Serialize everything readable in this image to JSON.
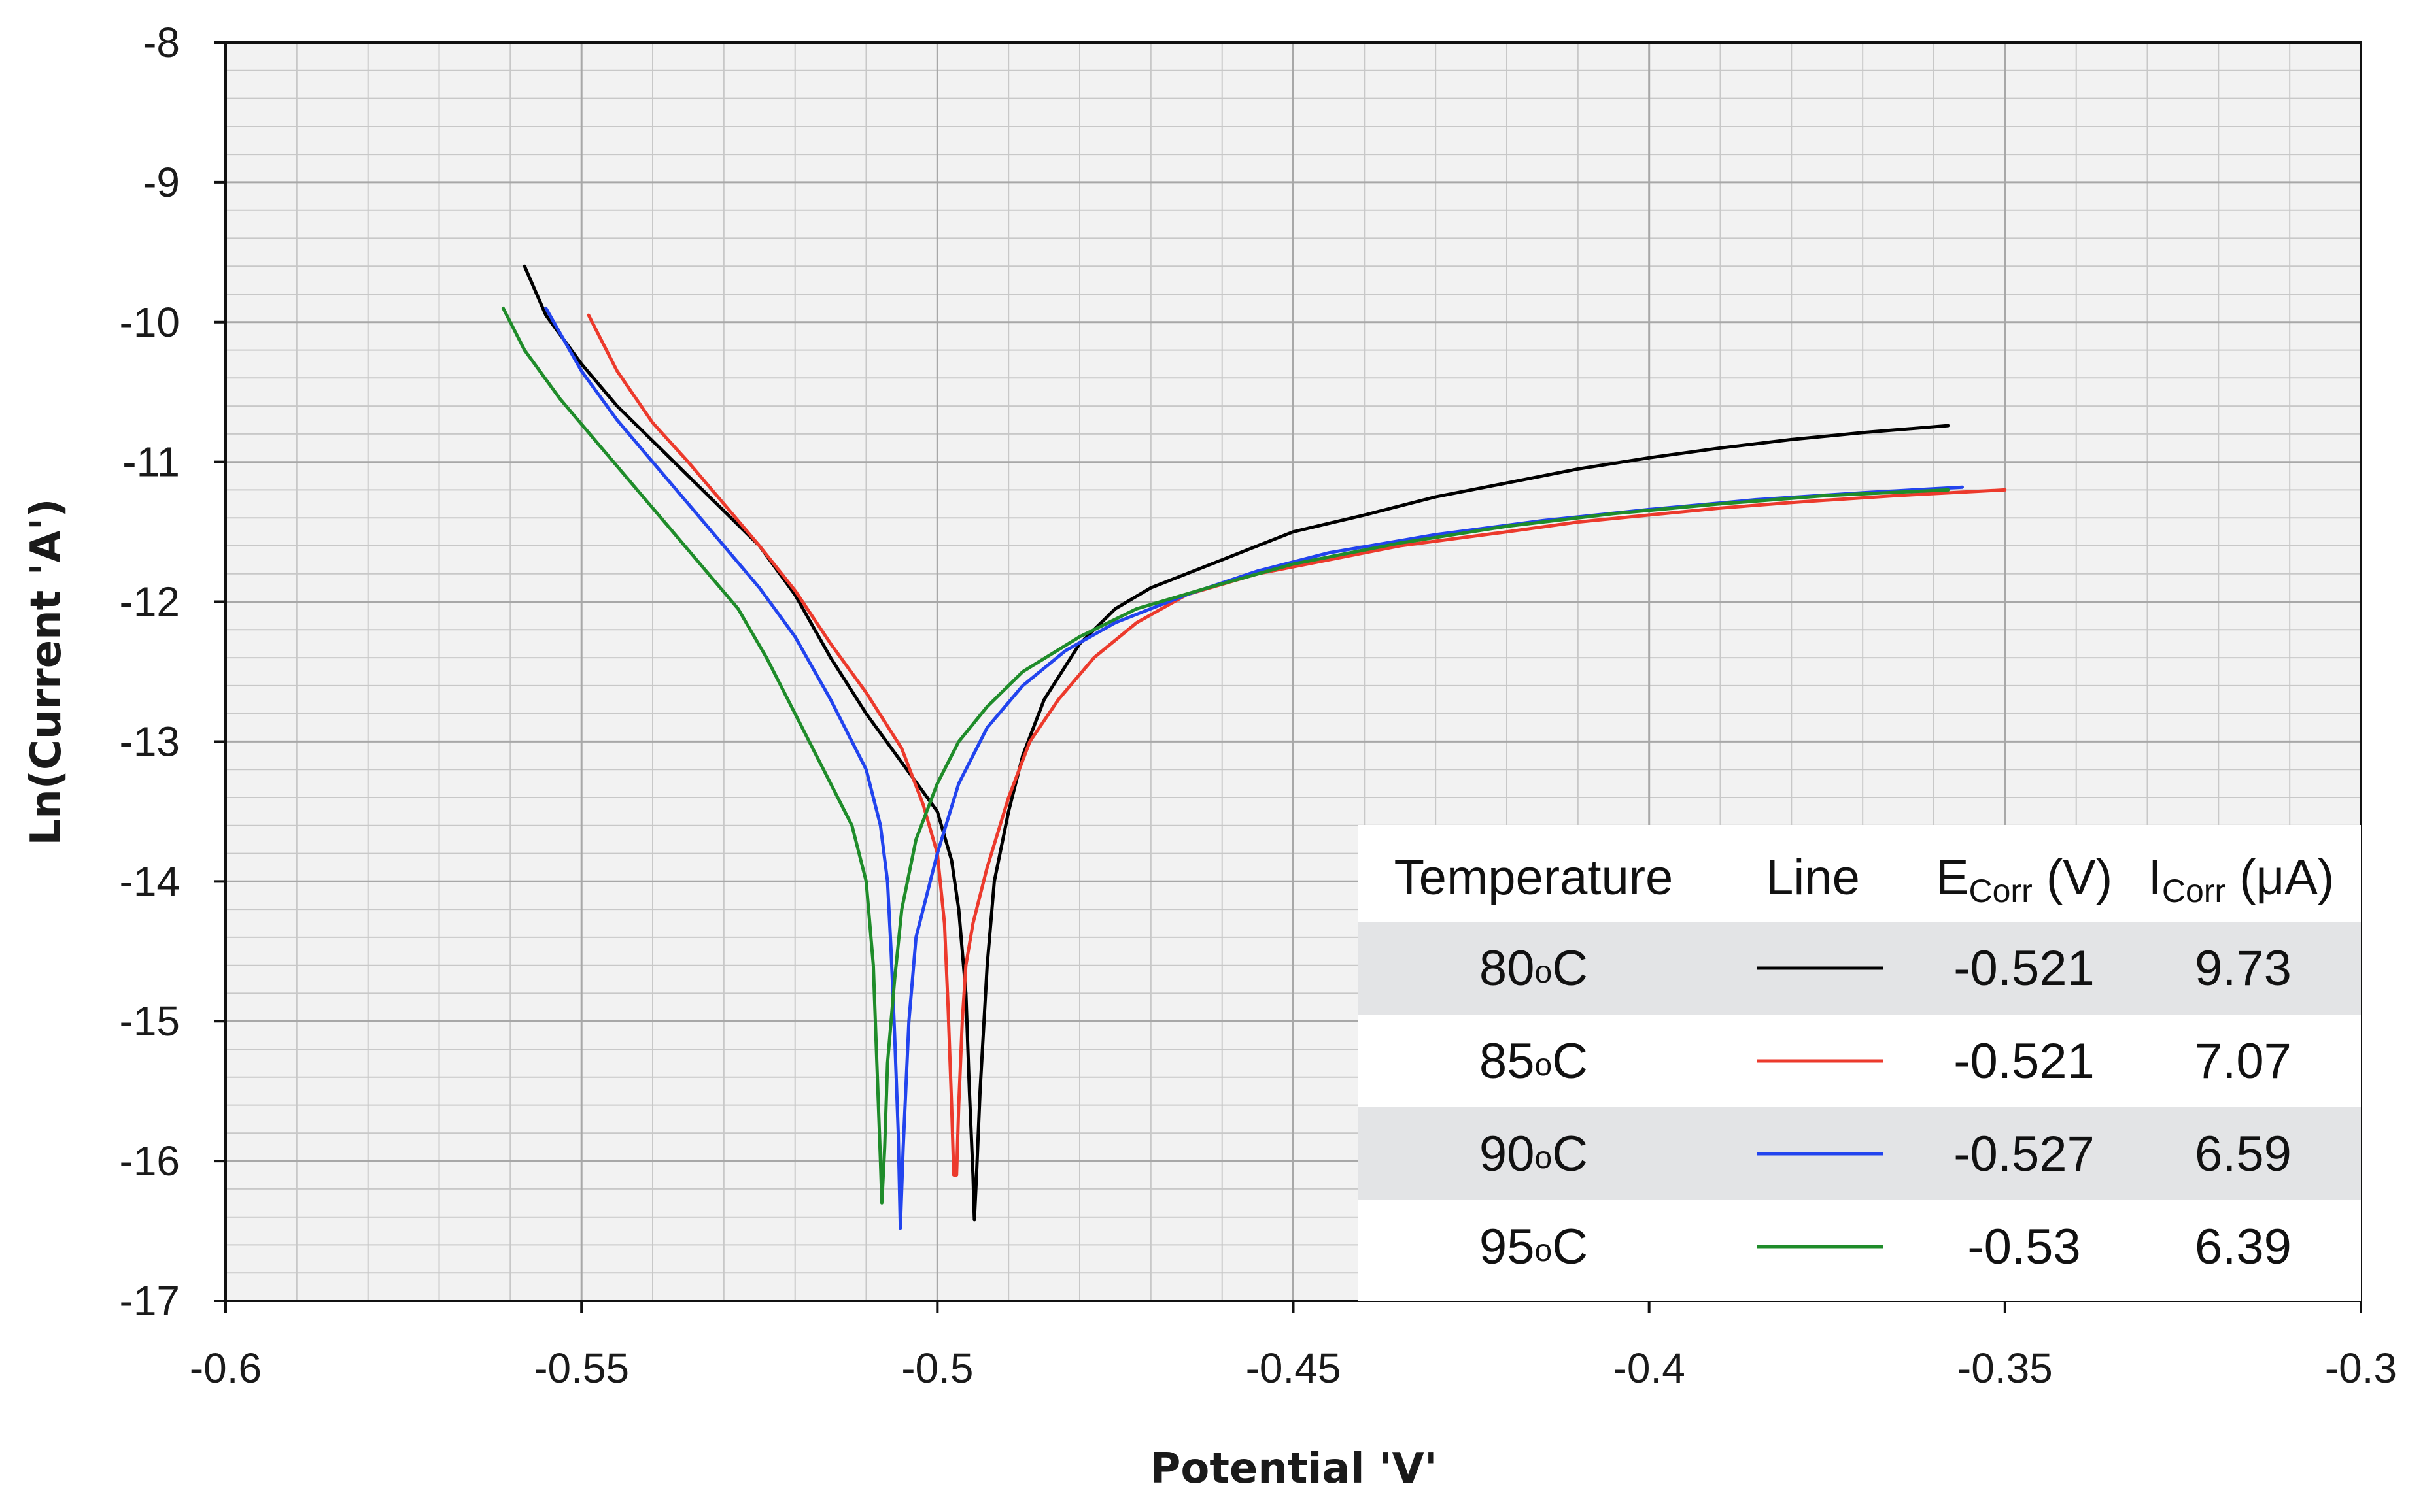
{
  "chart_data": {
    "type": "line",
    "xlabel": "Potential 'V'",
    "ylabel": "Ln(Current 'A')",
    "xlim": [
      -0.6,
      -0.3
    ],
    "ylim": [
      -17,
      -8
    ],
    "x_ticks": [
      -0.6,
      -0.55,
      -0.5,
      -0.45,
      -0.4,
      -0.35,
      -0.3
    ],
    "x_tick_labels": [
      "-0.6",
      "-0.55",
      "-0.5",
      "-0.45",
      "-0.4",
      "-0.35",
      "-0.3"
    ],
    "y_ticks": [
      -8,
      -9,
      -10,
      -11,
      -12,
      -13,
      -14,
      -15,
      -16,
      -17
    ],
    "y_tick_labels": [
      "-8",
      "-9",
      "-10",
      "-11",
      "-12",
      "-13",
      "-14",
      "-15",
      "-16",
      "-17"
    ],
    "x_minor_step": 0.01,
    "y_minor_step": 0.2,
    "grid": true,
    "series": [
      {
        "name": "80°C",
        "color": "#000000",
        "points": [
          [
            -0.558,
            -9.6
          ],
          [
            -0.555,
            -9.95
          ],
          [
            -0.55,
            -10.3
          ],
          [
            -0.545,
            -10.6
          ],
          [
            -0.54,
            -10.85
          ],
          [
            -0.535,
            -11.1
          ],
          [
            -0.53,
            -11.35
          ],
          [
            -0.525,
            -11.6
          ],
          [
            -0.52,
            -11.95
          ],
          [
            -0.515,
            -12.4
          ],
          [
            -0.51,
            -12.8
          ],
          [
            -0.505,
            -13.15
          ],
          [
            -0.5,
            -13.5
          ],
          [
            -0.498,
            -13.85
          ],
          [
            -0.497,
            -14.2
          ],
          [
            -0.496,
            -14.8
          ],
          [
            -0.4955,
            -15.5
          ],
          [
            -0.495,
            -16.1
          ],
          [
            -0.4948,
            -16.42
          ],
          [
            -0.4945,
            -16.1
          ],
          [
            -0.494,
            -15.5
          ],
          [
            -0.493,
            -14.6
          ],
          [
            -0.492,
            -14.0
          ],
          [
            -0.49,
            -13.5
          ],
          [
            -0.488,
            -13.1
          ],
          [
            -0.485,
            -12.7
          ],
          [
            -0.48,
            -12.3
          ],
          [
            -0.475,
            -12.05
          ],
          [
            -0.47,
            -11.9
          ],
          [
            -0.46,
            -11.7
          ],
          [
            -0.45,
            -11.5
          ],
          [
            -0.44,
            -11.38
          ],
          [
            -0.43,
            -11.25
          ],
          [
            -0.42,
            -11.15
          ],
          [
            -0.41,
            -11.05
          ],
          [
            -0.4,
            -10.97
          ],
          [
            -0.39,
            -10.9
          ],
          [
            -0.38,
            -10.84
          ],
          [
            -0.37,
            -10.79
          ],
          [
            -0.358,
            -10.74
          ]
        ]
      },
      {
        "name": "85°C",
        "color": "#ec3a2c",
        "points": [
          [
            -0.549,
            -9.95
          ],
          [
            -0.545,
            -10.35
          ],
          [
            -0.54,
            -10.72
          ],
          [
            -0.535,
            -11.0
          ],
          [
            -0.53,
            -11.3
          ],
          [
            -0.525,
            -11.6
          ],
          [
            -0.52,
            -11.92
          ],
          [
            -0.515,
            -12.3
          ],
          [
            -0.51,
            -12.65
          ],
          [
            -0.505,
            -13.05
          ],
          [
            -0.502,
            -13.45
          ],
          [
            -0.5,
            -13.8
          ],
          [
            -0.499,
            -14.3
          ],
          [
            -0.4985,
            -14.9
          ],
          [
            -0.498,
            -15.6
          ],
          [
            -0.4977,
            -16.1
          ],
          [
            -0.4973,
            -16.1
          ],
          [
            -0.497,
            -15.6
          ],
          [
            -0.4965,
            -15.0
          ],
          [
            -0.496,
            -14.6
          ],
          [
            -0.495,
            -14.3
          ],
          [
            -0.493,
            -13.9
          ],
          [
            -0.49,
            -13.4
          ],
          [
            -0.487,
            -13.0
          ],
          [
            -0.483,
            -12.7
          ],
          [
            -0.478,
            -12.4
          ],
          [
            -0.472,
            -12.15
          ],
          [
            -0.465,
            -11.95
          ],
          [
            -0.455,
            -11.8
          ],
          [
            -0.445,
            -11.7
          ],
          [
            -0.435,
            -11.6
          ],
          [
            -0.42,
            -11.5
          ],
          [
            -0.41,
            -11.43
          ],
          [
            -0.4,
            -11.38
          ],
          [
            -0.39,
            -11.33
          ],
          [
            -0.38,
            -11.29
          ],
          [
            -0.365,
            -11.24
          ],
          [
            -0.35,
            -11.2
          ]
        ]
      },
      {
        "name": "90°C",
        "color": "#2244ee",
        "points": [
          [
            -0.555,
            -9.9
          ],
          [
            -0.55,
            -10.35
          ],
          [
            -0.545,
            -10.7
          ],
          [
            -0.54,
            -11.0
          ],
          [
            -0.535,
            -11.3
          ],
          [
            -0.53,
            -11.6
          ],
          [
            -0.525,
            -11.9
          ],
          [
            -0.52,
            -12.25
          ],
          [
            -0.515,
            -12.7
          ],
          [
            -0.51,
            -13.2
          ],
          [
            -0.508,
            -13.6
          ],
          [
            -0.507,
            -14.0
          ],
          [
            -0.5065,
            -14.5
          ],
          [
            -0.506,
            -15.1
          ],
          [
            -0.5055,
            -15.8
          ],
          [
            -0.5052,
            -16.48
          ],
          [
            -0.5048,
            -15.9
          ],
          [
            -0.504,
            -15.0
          ],
          [
            -0.503,
            -14.4
          ],
          [
            -0.5,
            -13.8
          ],
          [
            -0.497,
            -13.3
          ],
          [
            -0.493,
            -12.9
          ],
          [
            -0.488,
            -12.6
          ],
          [
            -0.482,
            -12.35
          ],
          [
            -0.475,
            -12.15
          ],
          [
            -0.465,
            -11.95
          ],
          [
            -0.455,
            -11.78
          ],
          [
            -0.445,
            -11.65
          ],
          [
            -0.43,
            -11.52
          ],
          [
            -0.415,
            -11.42
          ],
          [
            -0.4,
            -11.34
          ],
          [
            -0.385,
            -11.27
          ],
          [
            -0.37,
            -11.22
          ],
          [
            -0.356,
            -11.18
          ]
        ]
      },
      {
        "name": "95°C",
        "color": "#1f8c2a",
        "points": [
          [
            -0.561,
            -9.9
          ],
          [
            -0.558,
            -10.2
          ],
          [
            -0.553,
            -10.55
          ],
          [
            -0.548,
            -10.85
          ],
          [
            -0.543,
            -11.15
          ],
          [
            -0.538,
            -11.45
          ],
          [
            -0.533,
            -11.75
          ],
          [
            -0.528,
            -12.05
          ],
          [
            -0.524,
            -12.4
          ],
          [
            -0.52,
            -12.8
          ],
          [
            -0.516,
            -13.2
          ],
          [
            -0.512,
            -13.6
          ],
          [
            -0.51,
            -14.0
          ],
          [
            -0.509,
            -14.6
          ],
          [
            -0.5085,
            -15.3
          ],
          [
            -0.508,
            -16.0
          ],
          [
            -0.5078,
            -16.3
          ],
          [
            -0.5074,
            -15.9
          ],
          [
            -0.507,
            -15.3
          ],
          [
            -0.506,
            -14.7
          ],
          [
            -0.505,
            -14.2
          ],
          [
            -0.503,
            -13.7
          ],
          [
            -0.5,
            -13.3
          ],
          [
            -0.497,
            -13.0
          ],
          [
            -0.493,
            -12.75
          ],
          [
            -0.488,
            -12.5
          ],
          [
            -0.48,
            -12.25
          ],
          [
            -0.472,
            -12.05
          ],
          [
            -0.462,
            -11.9
          ],
          [
            -0.45,
            -11.73
          ],
          [
            -0.435,
            -11.58
          ],
          [
            -0.42,
            -11.46
          ],
          [
            -0.405,
            -11.37
          ],
          [
            -0.39,
            -11.3
          ],
          [
            -0.375,
            -11.24
          ],
          [
            -0.358,
            -11.2
          ]
        ]
      }
    ],
    "legend_placement": "bottom-right",
    "legend_table": {
      "headers": {
        "temperature": "Temperature",
        "line": "Line",
        "ecorr_main": "E",
        "ecorr_sub": "Corr",
        "ecorr_unit": " (V)",
        "icorr_main": "I",
        "icorr_sub": "Corr",
        "icorr_unit": " (μA)"
      },
      "rows": [
        {
          "temp_value": "80",
          "temp_sup": "o",
          "temp_unit": "C",
          "color": "#000000",
          "ecorr": "-0.521",
          "icorr": "9.73",
          "shaded": true
        },
        {
          "temp_value": "85",
          "temp_sup": "o",
          "temp_unit": "C",
          "color": "#ec3a2c",
          "ecorr": "-0.521",
          "icorr": "7.07",
          "shaded": false
        },
        {
          "temp_value": "90",
          "temp_sup": "o",
          "temp_unit": "C",
          "color": "#2244ee",
          "ecorr": "-0.527",
          "icorr": "6.59",
          "shaded": true
        },
        {
          "temp_value": "95",
          "temp_sup": "o",
          "temp_unit": "C",
          "color": "#1f8c2a",
          "ecorr": "-0.53",
          "icorr": "6.39",
          "shaded": false
        }
      ]
    }
  }
}
